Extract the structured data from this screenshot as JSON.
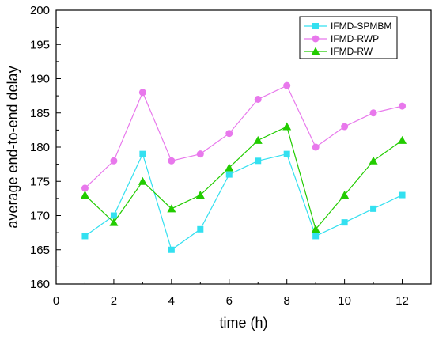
{
  "chart_data": {
    "type": "line",
    "xlabel": "time (h)",
    "ylabel": "average end-to-end delay",
    "xlim": [
      0,
      13
    ],
    "ylim": [
      160,
      200
    ],
    "xticks": [
      0,
      2,
      4,
      6,
      8,
      10,
      12
    ],
    "yticks": [
      160,
      165,
      170,
      175,
      180,
      185,
      190,
      195,
      200
    ],
    "grid": false,
    "legend_position": "top-right",
    "x": [
      1,
      2,
      3,
      4,
      5,
      6,
      7,
      8,
      9,
      10,
      11,
      12
    ],
    "series": [
      {
        "name": "IFMD-SPMBM",
        "color": "#33e0f0",
        "marker": "square",
        "values": [
          167,
          170,
          179,
          165,
          168,
          176,
          178,
          179,
          167,
          169,
          171,
          173
        ]
      },
      {
        "name": "IFMD-RWP",
        "color": "#e878ec",
        "marker": "circle",
        "values": [
          174,
          178,
          188,
          178,
          179,
          182,
          187,
          189,
          180,
          183,
          185,
          186
        ]
      },
      {
        "name": "IFMD-RW",
        "color": "#22cc00",
        "marker": "triangle",
        "values": [
          173,
          169,
          175,
          171,
          173,
          177,
          181,
          183,
          168,
          173,
          178,
          181
        ]
      }
    ]
  }
}
